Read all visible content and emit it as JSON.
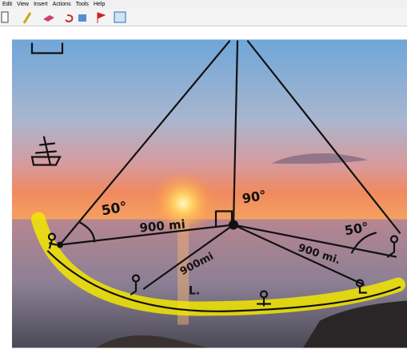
{
  "menu": [
    "Edit",
    "View",
    "Insert",
    "Actions",
    "Tools",
    "Help"
  ],
  "annotations": [
    "50°",
    "900 mi",
    "90°",
    "50°",
    "900 mi.",
    "900mi",
    "L."
  ]
}
